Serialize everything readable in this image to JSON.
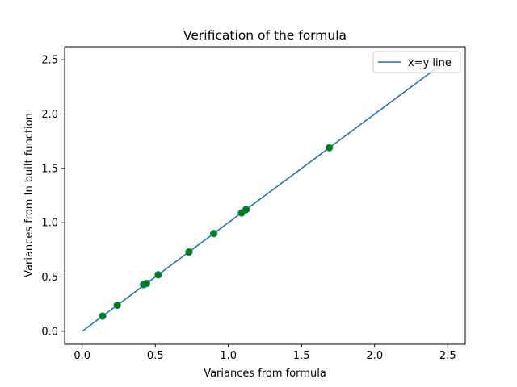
{
  "chart_data": {
    "type": "scatter",
    "title": "Verification of the formula",
    "xlabel": "Variances from formula",
    "ylabel": "Variances from In built function",
    "xlim": [
      -0.12,
      2.62
    ],
    "ylim": [
      -0.12,
      2.62
    ],
    "xticks": [
      0.0,
      0.5,
      1.0,
      1.5,
      2.0,
      2.5
    ],
    "yticks": [
      0.0,
      0.5,
      1.0,
      1.5,
      2.0,
      2.5
    ],
    "xtick_labels": [
      "0.0",
      "0.5",
      "1.0",
      "1.5",
      "2.0",
      "2.5"
    ],
    "ytick_labels": [
      "0.0",
      "0.5",
      "1.0",
      "1.5",
      "2.0",
      "2.5"
    ],
    "grid": false,
    "legend_position": "top-right",
    "line_series": {
      "name": "x=y line",
      "color": "#1f77b4",
      "x": [
        0.0,
        2.5
      ],
      "y": [
        0.0,
        2.5
      ]
    },
    "scatter_series": {
      "color": "#008000",
      "edge_color": "#1f77b4",
      "x": [
        0.14,
        0.24,
        0.42,
        0.44,
        0.52,
        0.73,
        0.9,
        1.09,
        1.12,
        1.69
      ],
      "y": [
        0.14,
        0.24,
        0.43,
        0.44,
        0.52,
        0.73,
        0.9,
        1.09,
        1.12,
        1.69
      ]
    }
  }
}
